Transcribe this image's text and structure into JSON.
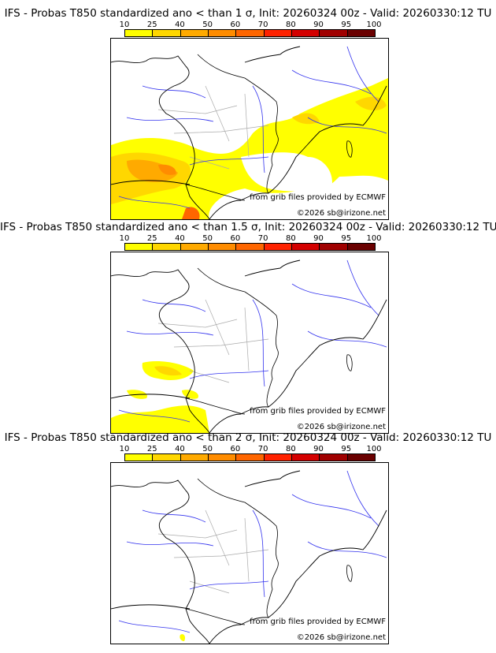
{
  "panels": [
    {
      "title": "IFS - Probas T850  standardized ano < than 1 σ, Init: 20260324 00z - Valid: 20260330:12 TU",
      "coverage": "extensive"
    },
    {
      "title": "IFS - Probas T850  standardized ano < than 1.5 σ, Init: 20260324 00z - Valid: 20260330:12 TU",
      "coverage": "moderate"
    },
    {
      "title": "IFS - Probas T850  standardized ano < than 2 σ, Init: 20260324 00z - Valid: 20260330:12 TU",
      "coverage": "minimal"
    }
  ],
  "colorbar": {
    "ticks": [
      "10",
      "25",
      "40",
      "50",
      "60",
      "70",
      "80",
      "90",
      "95",
      "100"
    ],
    "colors": [
      "#ffff00",
      "#ffd700",
      "#ffaa00",
      "#ff8c00",
      "#ff6600",
      "#ff2200",
      "#d40000",
      "#a00000",
      "#6a0000"
    ]
  },
  "credits": {
    "source": "from grib files provided by ECMWF",
    "copyright": "©2026 sb@irizone.net"
  }
}
